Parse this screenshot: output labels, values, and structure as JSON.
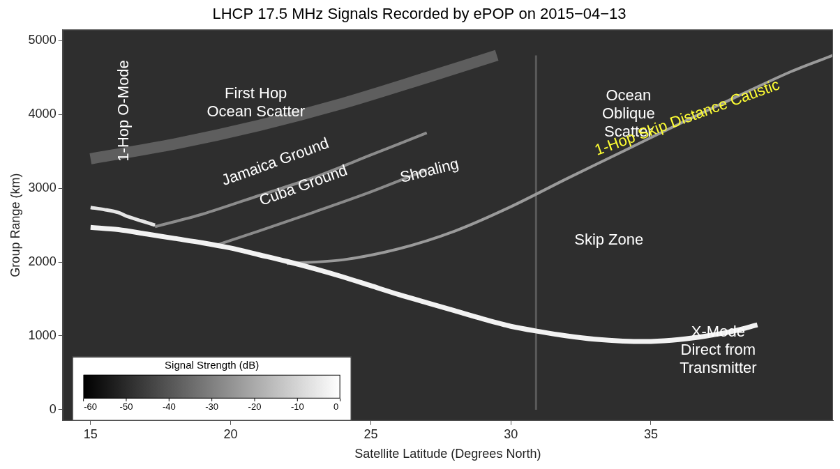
{
  "chart_data": {
    "type": "line",
    "title": "LHCP 17.5 MHz Signals Recorded by ePOP on 2015−04−13",
    "x_label": "Satellite Latitude (Degrees North)",
    "y_label": "Group Range (km)",
    "xlim": [
      14,
      41.5
    ],
    "xticks": [
      15,
      20,
      25,
      30,
      35
    ],
    "ylim": [
      -150,
      5150
    ],
    "yticks": [
      0,
      1000,
      2000,
      3000,
      4000,
      5000
    ],
    "grid": false,
    "series": [
      {
        "color": "#f2f2f2",
        "x": [
          15,
          16,
          17,
          18,
          19,
          20,
          21,
          22,
          23,
          24,
          25,
          26,
          27,
          28,
          29,
          30,
          31,
          32,
          33,
          34,
          35,
          36,
          37,
          38,
          38.8
        ],
        "values": [
          2470,
          2440,
          2380,
          2320,
          2260,
          2190,
          2100,
          2010,
          1910,
          1800,
          1680,
          1560,
          1450,
          1340,
          1230,
          1130,
          1060,
          1000,
          955,
          930,
          925,
          950,
          1000,
          1070,
          1150
        ]
      },
      {
        "color": "#e6e6e6",
        "x": [
          15,
          15.5,
          16,
          16.3,
          16.8,
          17.3
        ],
        "values": [
          2740,
          2710,
          2670,
          2620,
          2560,
          2500
        ]
      },
      {
        "color": "#5e5e5e",
        "x": [
          15,
          18,
          21,
          24,
          27,
          29.5
        ],
        "values": [
          3400,
          3600,
          3850,
          4150,
          4500,
          4800
        ]
      },
      {
        "color": "#8c8c8c",
        "x": [
          17.3,
          19,
          21,
          23,
          25,
          27
        ],
        "values": [
          2480,
          2650,
          2900,
          3150,
          3450,
          3750
        ]
      },
      {
        "color": "#8a8a8a",
        "x": [
          19.5,
          21,
          23,
          25,
          27
        ],
        "values": [
          2230,
          2420,
          2680,
          2950,
          3250
        ]
      },
      {
        "color": "#9a9a9a",
        "x": [
          22,
          24,
          26,
          28,
          30,
          32,
          34,
          36,
          38,
          40,
          41.5
        ],
        "values": [
          1980,
          2030,
          2180,
          2420,
          2750,
          3130,
          3500,
          3870,
          4230,
          4580,
          4800
        ]
      },
      {
        "color": "#5a5a5a",
        "x": [
          30.9,
          30.9
        ],
        "values": [
          0,
          4800
        ]
      }
    ],
    "annotations": [
      {
        "text": "1-Hop O-Mode",
        "x": 16.2,
        "y": 4050,
        "color": "#ffffff"
      },
      {
        "text": [
          "First Hop",
          "Ocean Scatter"
        ],
        "x": 20.9,
        "y": 4150,
        "color": "#ffffff"
      },
      {
        "text": "Jamaica Ground",
        "x": 21.6,
        "y": 3350,
        "color": "#ffffff"
      },
      {
        "text": "Cuba Ground",
        "x": 22.6,
        "y": 3030,
        "color": "#ffffff"
      },
      {
        "text": "Shoaling",
        "x": 27.1,
        "y": 3230,
        "color": "#ffffff"
      },
      {
        "text": [
          "Ocean",
          "Oblique",
          "Scatter"
        ],
        "x": 34.2,
        "y": 4000,
        "color": "#ffffff"
      },
      {
        "text": "1-Hop Skip Distance Caustic",
        "x": 36.3,
        "y": 3950,
        "color": "#ffff33"
      },
      {
        "text": "Skip Zone",
        "x": 33.5,
        "y": 2290,
        "color": "#ffffff"
      },
      {
        "text": [
          "X-Mode",
          "Direct from",
          "Transmitter"
        ],
        "x": 37.4,
        "y": 800,
        "color": "#ffffff"
      }
    ],
    "colorbar": {
      "title": "Signal Strength (dB)",
      "range": [
        -60,
        0
      ],
      "ticks": [
        -60,
        -50,
        -40,
        -30,
        -20,
        -10,
        0
      ]
    }
  }
}
